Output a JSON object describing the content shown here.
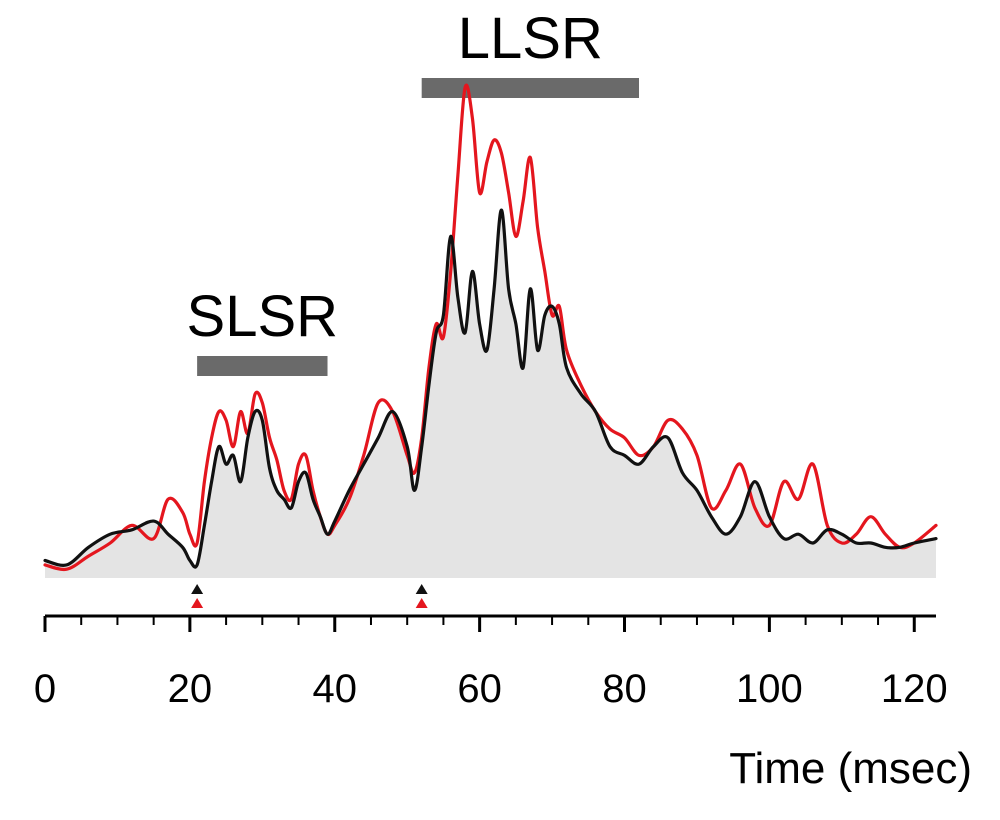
{
  "chart_data": {
    "type": "line",
    "title": "",
    "xlabel": "Time (msec)",
    "ylabel": "",
    "xlim": [
      0,
      123
    ],
    "ylim": [
      0,
      100
    ],
    "xticks": [
      "0",
      "20",
      "40",
      "60",
      "80",
      "100",
      "120"
    ],
    "grid": false,
    "colors": {
      "red": "#e4161e",
      "black": "#111111",
      "fill": "#e4e4e4",
      "bar": "#6a6a6a"
    },
    "bands": [
      {
        "label": "SLSR",
        "start": 21,
        "end": 39
      },
      {
        "label": "LLSR",
        "start": 52,
        "end": 82
      }
    ],
    "markers": [
      21,
      52
    ],
    "series": [
      {
        "color": "#e4161e",
        "x": [
          0,
          3,
          6,
          9,
          12,
          15,
          17,
          19,
          20,
          21,
          22,
          23,
          24,
          25,
          26,
          27,
          28,
          29,
          30,
          31,
          32,
          33,
          34,
          35,
          36,
          37,
          38,
          39,
          40,
          42,
          44,
          46,
          48,
          50,
          51,
          52,
          53,
          54,
          55,
          56,
          57,
          58,
          59,
          60,
          61,
          62,
          63,
          64,
          65,
          66,
          67,
          68,
          69,
          70,
          71,
          72,
          74,
          76,
          78,
          80,
          82,
          84,
          86,
          88,
          90,
          92,
          94,
          96,
          98,
          100,
          102,
          104,
          106,
          108,
          110,
          112,
          114,
          116,
          118,
          120,
          123
        ],
        "y": [
          3,
          2,
          5,
          8,
          12,
          9,
          18,
          15,
          10,
          8,
          22,
          32,
          38,
          36,
          30,
          38,
          33,
          42,
          40,
          32,
          27,
          20,
          18,
          26,
          28,
          20,
          14,
          10,
          12,
          18,
          28,
          40,
          38,
          28,
          24,
          32,
          48,
          58,
          55,
          70,
          92,
          112,
          105,
          88,
          95,
          100,
          97,
          88,
          78,
          86,
          96,
          80,
          70,
          60,
          62,
          52,
          44,
          38,
          34,
          32,
          28,
          30,
          36,
          34,
          28,
          16,
          20,
          26,
          16,
          12,
          22,
          18,
          26,
          12,
          8,
          10,
          14,
          10,
          7,
          8,
          12
        ]
      },
      {
        "color": "#111111",
        "x": [
          0,
          3,
          6,
          9,
          12,
          15,
          17,
          19,
          20,
          21,
          22,
          23,
          24,
          25,
          26,
          27,
          28,
          29,
          30,
          31,
          32,
          33,
          34,
          35,
          36,
          37,
          38,
          39,
          40,
          42,
          44,
          46,
          48,
          50,
          51,
          52,
          53,
          54,
          55,
          56,
          57,
          58,
          59,
          60,
          61,
          62,
          63,
          64,
          65,
          66,
          67,
          68,
          69,
          70,
          71,
          72,
          74,
          76,
          78,
          80,
          82,
          84,
          86,
          88,
          90,
          92,
          94,
          96,
          98,
          100,
          102,
          104,
          106,
          108,
          110,
          112,
          114,
          116,
          118,
          120,
          123
        ],
        "y": [
          4,
          3,
          7,
          10,
          11,
          13,
          10,
          7,
          4,
          3,
          12,
          22,
          30,
          26,
          28,
          22,
          32,
          38,
          36,
          25,
          20,
          18,
          16,
          22,
          24,
          18,
          14,
          10,
          13,
          20,
          26,
          32,
          38,
          30,
          20,
          30,
          44,
          56,
          60,
          78,
          64,
          56,
          70,
          58,
          52,
          66,
          84,
          66,
          58,
          48,
          66,
          52,
          60,
          62,
          58,
          48,
          42,
          38,
          30,
          28,
          26,
          30,
          32,
          24,
          20,
          14,
          10,
          14,
          22,
          14,
          9,
          10,
          8,
          11,
          10,
          8,
          8,
          7,
          7,
          8,
          9
        ]
      }
    ]
  }
}
